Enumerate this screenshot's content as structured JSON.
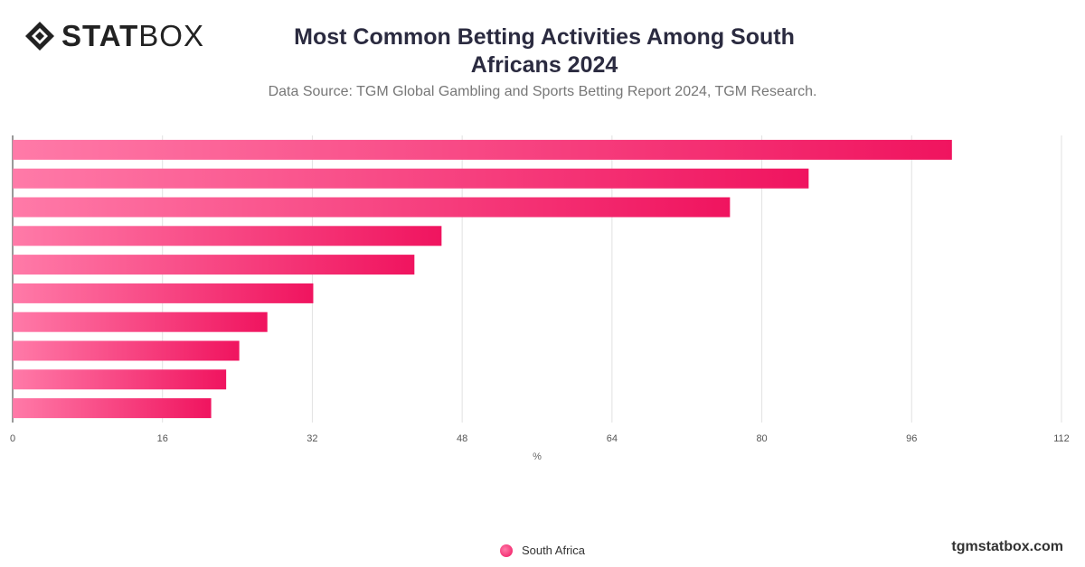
{
  "brand": {
    "logo_bold": "STAT",
    "logo_light": "BOX",
    "logo_icon": "statbox-diamond-icon"
  },
  "header": {
    "title": "Most Common Betting Activities Among South Africans 2024",
    "subtitle": "Data Source: TGM Global Gambling and Sports Betting Report 2024, TGM Research."
  },
  "chart_data": {
    "type": "bar",
    "orientation": "horizontal",
    "categories": [
      "",
      "",
      "",
      "",
      "",
      "",
      "",
      "",
      "",
      ""
    ],
    "series": [
      {
        "name": "South Africa",
        "values": [
          100.3,
          85.0,
          76.6,
          45.8,
          42.9,
          32.1,
          27.2,
          24.2,
          22.8,
          21.2
        ]
      }
    ],
    "xlabel": "%",
    "ylabel": "",
    "xlim": [
      0,
      112
    ],
    "ticks": [
      0,
      16,
      32,
      48,
      64,
      80,
      96,
      112
    ],
    "grid": true,
    "legend": "bottom-center",
    "colors": {
      "bar_start": "#ff7aa8",
      "bar_end": "#f0145f",
      "grid": "#e2e2e2"
    }
  },
  "footer": {
    "legend_label": "South Africa",
    "watermark": "tgmstatbox.com"
  }
}
